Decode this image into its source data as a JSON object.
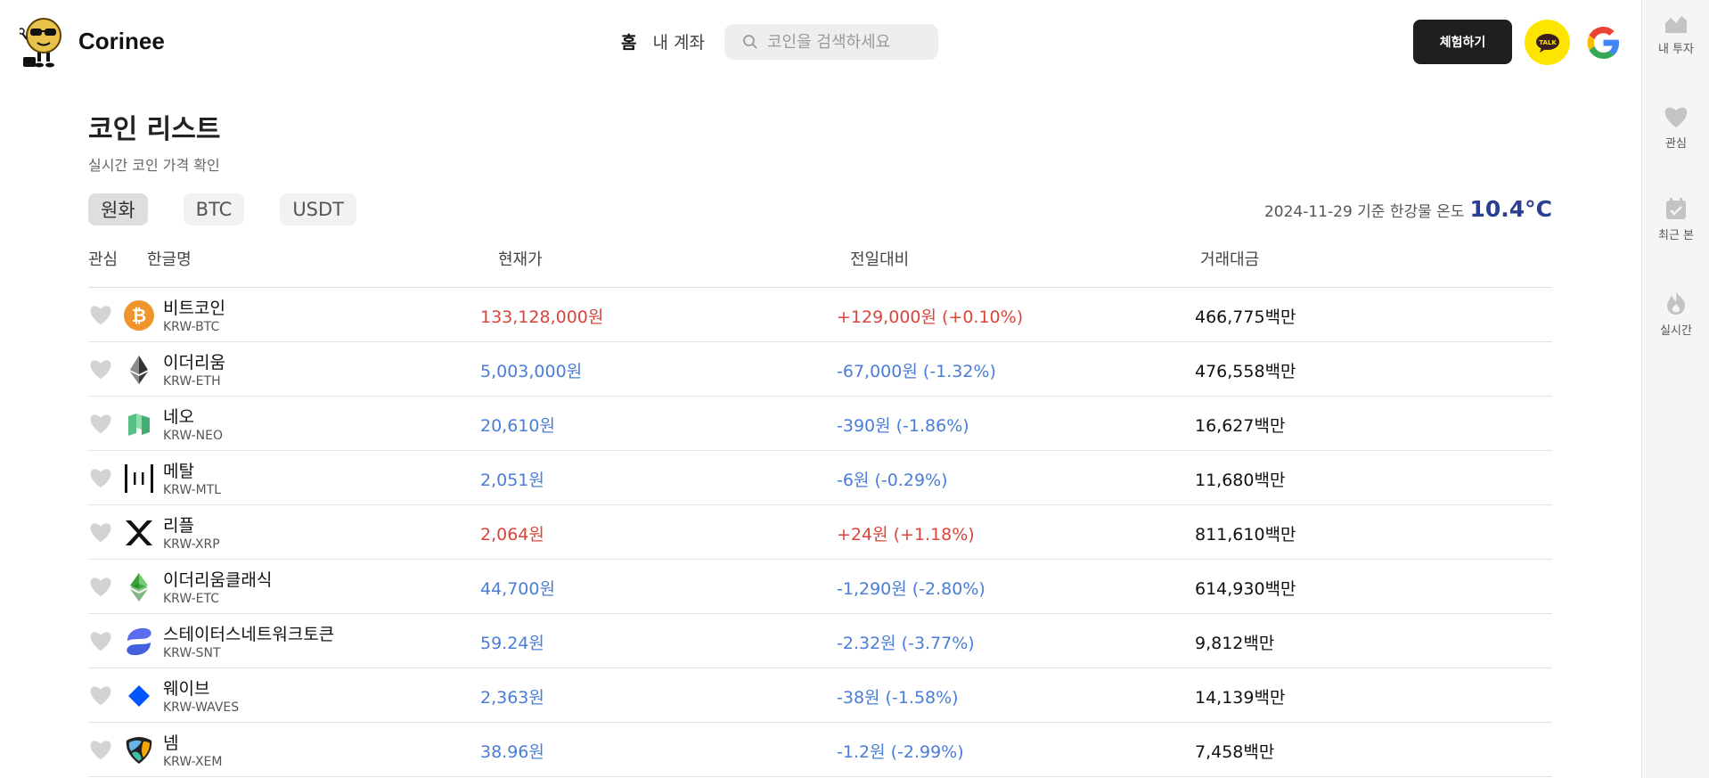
{
  "header": {
    "brand": "Corinee",
    "nav": {
      "home": "홈",
      "account": "내 계좌"
    },
    "search": {
      "placeholder": "코인을 검색하세요",
      "value": ""
    },
    "try_button": "체험하기",
    "kakao_label": "TALK"
  },
  "sidebar": {
    "items": [
      {
        "label": "내 투자",
        "icon": "chart-icon"
      },
      {
        "label": "관심",
        "icon": "heart-icon"
      },
      {
        "label": "최근 본",
        "icon": "calendar-check-icon"
      },
      {
        "label": "실시간",
        "icon": "fire-icon"
      }
    ]
  },
  "main": {
    "title": "코인 리스트",
    "subtitle": "실시간 코인 가격 확인",
    "tabs": [
      "원화",
      "BTC",
      "USDT"
    ],
    "active_tab": "원화",
    "temperature": {
      "label": "2024-11-29 기준 한강물 온도",
      "value": "10.4°C"
    },
    "columns": {
      "favorite": "관심",
      "name": "한글명",
      "price": "현재가",
      "change": "전일대비",
      "volume": "거래대금"
    },
    "coins": [
      {
        "name": "비트코인",
        "code": "KRW-BTC",
        "price": "133,128,000원",
        "change": "+129,000원 (+0.10%)",
        "volume": "466,775백만",
        "trend": "up",
        "icon": "bitcoin-icon"
      },
      {
        "name": "이더리움",
        "code": "KRW-ETH",
        "price": "5,003,000원",
        "change": "-67,000원 (-1.32%)",
        "volume": "476,558백만",
        "trend": "down",
        "icon": "ethereum-icon"
      },
      {
        "name": "네오",
        "code": "KRW-NEO",
        "price": "20,610원",
        "change": "-390원 (-1.86%)",
        "volume": "16,627백만",
        "trend": "down",
        "icon": "neo-icon"
      },
      {
        "name": "메탈",
        "code": "KRW-MTL",
        "price": "2,051원",
        "change": "-6원 (-0.29%)",
        "volume": "11,680백만",
        "trend": "down",
        "icon": "metal-icon"
      },
      {
        "name": "리플",
        "code": "KRW-XRP",
        "price": "2,064원",
        "change": "+24원 (+1.18%)",
        "volume": "811,610백만",
        "trend": "up",
        "icon": "xrp-icon"
      },
      {
        "name": "이더리움클래식",
        "code": "KRW-ETC",
        "price": "44,700원",
        "change": "-1,290원 (-2.80%)",
        "volume": "614,930백만",
        "trend": "down",
        "icon": "ethereum-classic-icon"
      },
      {
        "name": "스테이터스네트워크토큰",
        "code": "KRW-SNT",
        "price": "59.24원",
        "change": "-2.32원 (-3.77%)",
        "volume": "9,812백만",
        "trend": "down",
        "icon": "status-icon"
      },
      {
        "name": "웨이브",
        "code": "KRW-WAVES",
        "price": "2,363원",
        "change": "-38원 (-1.58%)",
        "volume": "14,139백만",
        "trend": "down",
        "icon": "waves-icon"
      },
      {
        "name": "넴",
        "code": "KRW-XEM",
        "price": "38.96원",
        "change": "-1.2원 (-2.99%)",
        "volume": "7,458백만",
        "trend": "down",
        "icon": "nem-icon"
      }
    ]
  },
  "colors": {
    "up": "#d9453b",
    "down": "#4a7dd6",
    "temperature": "#2c3e8f",
    "try_button": "#1f1f1f",
    "kakao": "#fee500"
  }
}
